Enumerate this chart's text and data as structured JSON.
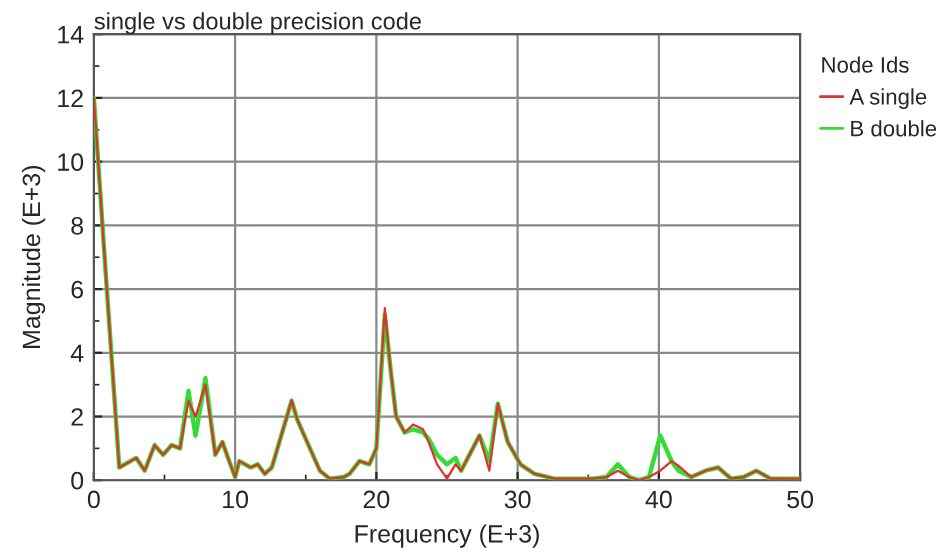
{
  "chart_data": {
    "type": "line",
    "title": "single vs double precision code",
    "xlabel": "Frequency (E+3)",
    "ylabel": "Magnitude (E+3)",
    "legend_title": "Node Ids",
    "x": [
      0,
      0.84,
      1.8,
      3.0,
      3.6,
      4.3,
      4.9,
      5.5,
      6.1,
      6.7,
      7.2,
      7.9,
      8.6,
      9.1,
      9.5,
      10.0,
      10.3,
      11.1,
      11.6,
      12.1,
      12.6,
      14.0,
      14.4,
      15.3,
      16.0,
      16.7,
      17.7,
      18.1,
      18.8,
      19.5,
      20.0,
      20.6,
      21.0,
      21.4,
      22.0,
      22.6,
      23.3,
      23.7,
      24.3,
      25.0,
      25.6,
      26.0,
      27.3,
      28.0,
      28.6,
      29.3,
      30.2,
      31.2,
      32.6,
      35.3,
      36.3,
      37.1,
      37.9,
      38.6,
      39.3,
      40.1,
      40.9,
      41.4,
      42.3,
      43.3,
      44.2,
      45.1,
      46.0,
      46.9,
      47.9,
      50
    ],
    "series": [
      {
        "name": "A single",
        "color": "#e03030",
        "values": [
          12,
          6.5,
          0.4,
          0.7,
          0.3,
          1.1,
          0.8,
          1.1,
          1.0,
          2.5,
          2.0,
          3.0,
          0.8,
          1.2,
          0.7,
          0.1,
          0.6,
          0.4,
          0.5,
          0.2,
          0.4,
          2.5,
          1.9,
          1.0,
          0.3,
          0.05,
          0.1,
          0.2,
          0.6,
          0.5,
          1.0,
          5.4,
          3.5,
          2.0,
          1.5,
          1.75,
          1.6,
          1.2,
          0.5,
          0.05,
          0.5,
          0.3,
          1.4,
          0.3,
          2.4,
          1.2,
          0.5,
          0.2,
          0.05,
          0.05,
          0.1,
          0.3,
          0.1,
          0.0,
          0.1,
          0.3,
          0.6,
          0.45,
          0.1,
          0.3,
          0.4,
          0.05,
          0.1,
          0.3,
          0.05,
          0.05
        ]
      },
      {
        "name": "B double",
        "color": "#33dd33",
        "values": [
          12,
          6.5,
          0.4,
          0.7,
          0.3,
          1.1,
          0.8,
          1.1,
          1.0,
          2.8,
          1.4,
          3.2,
          0.8,
          1.2,
          0.7,
          0.1,
          0.6,
          0.4,
          0.5,
          0.2,
          0.4,
          2.5,
          1.9,
          1.0,
          0.3,
          0.05,
          0.1,
          0.2,
          0.6,
          0.5,
          1.0,
          5.2,
          3.5,
          2.0,
          1.5,
          1.6,
          1.5,
          1.3,
          0.8,
          0.5,
          0.7,
          0.3,
          1.4,
          0.6,
          2.4,
          1.2,
          0.5,
          0.2,
          0.05,
          0.05,
          0.1,
          0.5,
          0.1,
          0.0,
          0.1,
          1.4,
          0.6,
          0.3,
          0.1,
          0.3,
          0.4,
          0.05,
          0.1,
          0.3,
          0.05,
          0.05
        ]
      }
    ],
    "xlim": [
      0,
      50
    ],
    "ylim": [
      0,
      14
    ],
    "xticks": [
      0,
      {
        "value": 5,
        "label": null
      },
      10,
      {
        "value": 15,
        "label": null
      },
      20,
      {
        "value": 25,
        "label": null
      },
      30,
      {
        "value": 35,
        "label": null
      },
      40,
      {
        "value": 45,
        "label": null
      },
      50
    ],
    "yticks": [
      0,
      {
        "value": 1,
        "label": null
      },
      2,
      {
        "value": 3,
        "label": null
      },
      4,
      {
        "value": 5,
        "label": null
      },
      6,
      {
        "value": 7,
        "label": null
      },
      8,
      {
        "value": 9,
        "label": null
      },
      10,
      {
        "value": 11,
        "label": null
      },
      12,
      {
        "value": 13,
        "label": null
      },
      14
    ],
    "grid": true,
    "legend": "right",
    "line_style": "solid",
    "marker": "none"
  }
}
